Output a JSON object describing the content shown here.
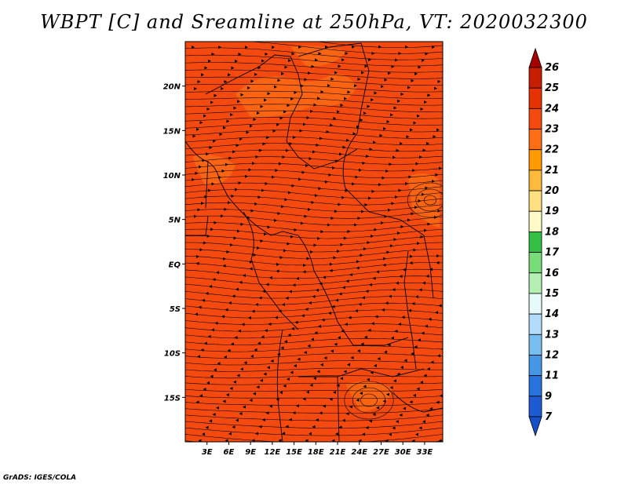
{
  "title": "WBPT [C] and Sreamline at 250hPa, VT: 2020032300",
  "credit": "GrADS: IGES/COLA",
  "map": {
    "lon_range": [
      0,
      35.5
    ],
    "lat_range": [
      -20,
      25
    ],
    "lon_ticks": [
      {
        "value": 3,
        "label": "3E"
      },
      {
        "value": 6,
        "label": "6E"
      },
      {
        "value": 9,
        "label": "9E"
      },
      {
        "value": 12,
        "label": "12E"
      },
      {
        "value": 15,
        "label": "15E"
      },
      {
        "value": 18,
        "label": "18E"
      },
      {
        "value": 21,
        "label": "21E"
      },
      {
        "value": 24,
        "label": "24E"
      },
      {
        "value": 27,
        "label": "27E"
      },
      {
        "value": 30,
        "label": "30E"
      },
      {
        "value": 33,
        "label": "33E"
      }
    ],
    "lat_ticks": [
      {
        "value": 20,
        "label": "20N"
      },
      {
        "value": 15,
        "label": "15N"
      },
      {
        "value": 10,
        "label": "10N"
      },
      {
        "value": 5,
        "label": "5N"
      },
      {
        "value": 0,
        "label": "EQ"
      },
      {
        "value": -5,
        "label": "5S"
      },
      {
        "value": -10,
        "label": "10S"
      },
      {
        "value": -15,
        "label": "15S"
      }
    ],
    "field_color": "#f44a10",
    "warm_patch_color": "#ff7a14",
    "streamline_color": "#000000",
    "boundary_color": "#000000"
  },
  "colorbar": {
    "levels": [
      "26",
      "25",
      "24",
      "23",
      "22",
      "21",
      "20",
      "19",
      "18",
      "17",
      "16",
      "15",
      "14",
      "13",
      "12",
      "11",
      "9",
      "7"
    ],
    "colors": [
      "#a50000",
      "#c81e00",
      "#e63200",
      "#f44a10",
      "#ff6e14",
      "#ff9a00",
      "#ffba3c",
      "#ffe080",
      "#fffac8",
      "#33c044",
      "#78dc78",
      "#b4f0b4",
      "#e6fafa",
      "#b4dcfa",
      "#78bef0",
      "#4696e6",
      "#2872dc",
      "#1e5ad2",
      "#1450c8"
    ]
  }
}
